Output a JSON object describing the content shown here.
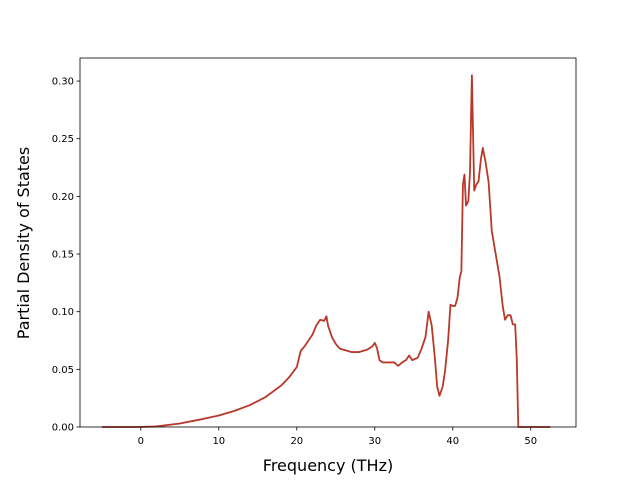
{
  "chart_data": {
    "type": "line",
    "xlabel": "Frequency (THz)",
    "ylabel": "Partial Density of States",
    "color": "#b8382a",
    "x": [
      -5,
      0,
      2,
      5,
      8,
      10,
      12,
      14,
      16,
      18,
      19,
      20,
      20.5,
      21,
      22,
      22.5,
      23,
      23.5,
      23.8,
      24,
      24.5,
      25,
      25.5,
      26,
      27,
      28,
      29,
      29.7,
      30,
      30.3,
      30.6,
      31,
      32,
      32.5,
      33,
      33.5,
      34,
      34.4,
      34.8,
      35.5,
      36,
      36.5,
      36.9,
      37.3,
      37.7,
      38,
      38.3,
      38.7,
      39,
      39.4,
      39.7,
      40,
      40.3,
      40.6,
      40.9,
      41.1,
      41.3,
      41.5,
      41.7,
      42,
      42.2,
      42.45,
      42.75,
      43,
      43.3,
      43.6,
      43.85,
      44.2,
      44.6,
      45,
      45.5,
      46,
      46.4,
      46.7,
      47.05,
      47.4,
      47.7,
      48,
      48.2,
      48.4,
      52.5
    ],
    "values": [
      0,
      0,
      0.0005,
      0.003,
      0.007,
      0.01,
      0.014,
      0.019,
      0.026,
      0.036,
      0.043,
      0.052,
      0.066,
      0.07,
      0.08,
      0.088,
      0.093,
      0.092,
      0.096,
      0.088,
      0.078,
      0.072,
      0.068,
      0.067,
      0.065,
      0.065,
      0.067,
      0.07,
      0.073,
      0.068,
      0.058,
      0.056,
      0.056,
      0.056,
      0.053,
      0.056,
      0.058,
      0.062,
      0.058,
      0.06,
      0.068,
      0.078,
      0.1,
      0.088,
      0.06,
      0.035,
      0.027,
      0.035,
      0.048,
      0.075,
      0.106,
      0.105,
      0.105,
      0.112,
      0.13,
      0.135,
      0.21,
      0.219,
      0.192,
      0.196,
      0.22,
      0.305,
      0.205,
      0.21,
      0.213,
      0.232,
      0.242,
      0.23,
      0.212,
      0.17,
      0.15,
      0.13,
      0.105,
      0.093,
      0.097,
      0.097,
      0.089,
      0.089,
      0.06,
      0,
      0
    ],
    "xlim": [
      -7.8,
      55.8
    ],
    "xticks": [
      0,
      10,
      20,
      30,
      40,
      50
    ],
    "ylim": [
      0,
      0.32
    ],
    "yticks": [
      {
        "value": 0,
        "label": "0.00"
      },
      {
        "value": 0.05,
        "label": "0.05"
      },
      {
        "value": 0.1,
        "label": "0.10"
      },
      {
        "value": 0.15,
        "label": "0.15"
      },
      {
        "value": 0.2,
        "label": "0.20"
      },
      {
        "value": 0.25,
        "label": "0.25"
      },
      {
        "value": 0.3,
        "label": "0.30"
      }
    ]
  }
}
